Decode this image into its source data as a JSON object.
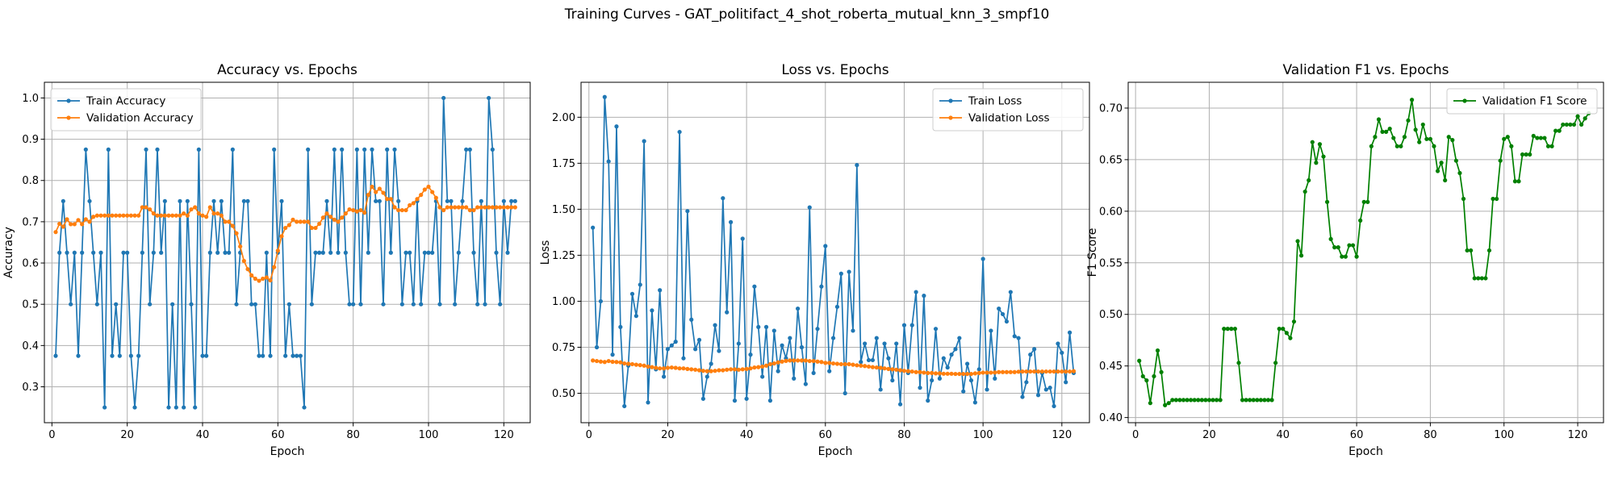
{
  "figure": {
    "suptitle": "Training Curves - GAT_politifact_4_shot_roberta_mutual_knn_3_smpf10"
  },
  "colors": {
    "train": "#1f77b4",
    "validation": "#ff7f0e",
    "f1": "#008000",
    "grid": "#b0b0b0"
  },
  "chart_data": [
    {
      "type": "line",
      "title": "Accuracy vs. Epochs",
      "xlabel": "Epoch",
      "ylabel": "Accuracy",
      "xlim": [
        -2,
        127
      ],
      "ylim": [
        0.213,
        1.038
      ],
      "xticks": [
        0,
        20,
        40,
        60,
        80,
        100,
        120
      ],
      "yticks": [
        0.3,
        0.4,
        0.5,
        0.6,
        0.7,
        0.8,
        0.9,
        1.0
      ],
      "ytick_labels": [
        "0.3",
        "0.4",
        "0.5",
        "0.6",
        "0.7",
        "0.8",
        "0.9",
        "1.0"
      ],
      "grid": true,
      "legend_position": "upper-left",
      "x": [
        1,
        2,
        3,
        4,
        5,
        6,
        7,
        8,
        9,
        10,
        11,
        12,
        13,
        14,
        15,
        16,
        17,
        18,
        19,
        20,
        21,
        22,
        23,
        24,
        25,
        26,
        27,
        28,
        29,
        30,
        31,
        32,
        33,
        34,
        35,
        36,
        37,
        38,
        39,
        40,
        41,
        42,
        43,
        44,
        45,
        46,
        47,
        48,
        49,
        50,
        51,
        52,
        53,
        54,
        55,
        56,
        57,
        58,
        59,
        60,
        61,
        62,
        63,
        64,
        65,
        66,
        67,
        68,
        69,
        70,
        71,
        72,
        73,
        74,
        75,
        76,
        77,
        78,
        79,
        80,
        81,
        82,
        83,
        84,
        85,
        86,
        87,
        88,
        89,
        90,
        91,
        92,
        93,
        94,
        95,
        96,
        97,
        98,
        99,
        100,
        101,
        102,
        103,
        104,
        105,
        106,
        107,
        108,
        109,
        110,
        111,
        112,
        113,
        114,
        115,
        116,
        117,
        118,
        119,
        120,
        121,
        122,
        123
      ],
      "series": [
        {
          "name": "Train Accuracy",
          "color": "#1f77b4",
          "values": [
            0.375,
            0.625,
            0.75,
            0.625,
            0.5,
            0.625,
            0.375,
            0.625,
            0.875,
            0.75,
            0.625,
            0.5,
            0.625,
            0.25,
            0.875,
            0.375,
            0.5,
            0.375,
            0.625,
            0.625,
            0.375,
            0.25,
            0.375,
            0.625,
            0.875,
            0.5,
            0.625,
            0.875,
            0.625,
            0.75,
            0.25,
            0.5,
            0.25,
            0.75,
            0.25,
            0.75,
            0.5,
            0.25,
            0.875,
            0.375,
            0.375,
            0.625,
            0.75,
            0.625,
            0.75,
            0.625,
            0.625,
            0.875,
            0.5,
            0.625,
            0.75,
            0.75,
            0.5,
            0.5,
            0.375,
            0.375,
            0.625,
            0.375,
            0.875,
            0.625,
            0.75,
            0.375,
            0.5,
            0.375,
            0.375,
            0.375,
            0.25,
            0.875,
            0.5,
            0.625,
            0.625,
            0.625,
            0.75,
            0.625,
            0.875,
            0.625,
            0.875,
            0.625,
            0.5,
            0.5,
            0.875,
            0.5,
            0.875,
            0.625,
            0.875,
            0.75,
            0.75,
            0.5,
            0.875,
            0.625,
            0.875,
            0.75,
            0.5,
            0.625,
            0.625,
            0.5,
            0.75,
            0.5,
            0.625,
            0.625,
            0.625,
            0.75,
            0.5,
            1.0,
            0.75,
            0.75,
            0.5,
            0.625,
            0.75,
            0.875,
            0.875,
            0.625,
            0.5,
            0.75,
            0.5,
            1.0,
            0.875,
            0.625,
            0.5,
            0.75,
            0.625,
            0.75,
            0.75
          ]
        },
        {
          "name": "Validation Accuracy",
          "color": "#ff7f0e",
          "values": [
            0.675,
            0.695,
            0.688,
            0.706,
            0.694,
            0.694,
            0.704,
            0.694,
            0.706,
            0.7,
            0.712,
            0.715,
            0.715,
            0.715,
            0.715,
            0.715,
            0.715,
            0.715,
            0.715,
            0.715,
            0.715,
            0.715,
            0.715,
            0.735,
            0.735,
            0.73,
            0.72,
            0.715,
            0.715,
            0.715,
            0.715,
            0.715,
            0.715,
            0.715,
            0.72,
            0.715,
            0.73,
            0.735,
            0.72,
            0.715,
            0.712,
            0.735,
            0.72,
            0.72,
            0.715,
            0.7,
            0.7,
            0.69,
            0.672,
            0.64,
            0.605,
            0.585,
            0.57,
            0.562,
            0.557,
            0.562,
            0.565,
            0.558,
            0.59,
            0.63,
            0.665,
            0.685,
            0.692,
            0.705,
            0.7,
            0.7,
            0.7,
            0.7,
            0.685,
            0.685,
            0.695,
            0.71,
            0.72,
            0.712,
            0.705,
            0.7,
            0.71,
            0.72,
            0.73,
            0.728,
            0.725,
            0.728,
            0.722,
            0.765,
            0.785,
            0.772,
            0.78,
            0.77,
            0.755,
            0.755,
            0.735,
            0.728,
            0.728,
            0.728,
            0.74,
            0.745,
            0.755,
            0.765,
            0.778,
            0.785,
            0.772,
            0.758,
            0.735,
            0.728,
            0.735,
            0.735,
            0.735,
            0.735,
            0.735,
            0.735,
            0.728,
            0.728,
            0.735,
            0.735,
            0.735,
            0.735,
            0.735,
            0.735,
            0.735,
            0.735,
            0.735,
            0.735,
            0.735
          ]
        }
      ]
    },
    {
      "type": "line",
      "title": "Loss vs. Epochs",
      "xlabel": "Epoch",
      "ylabel": "Loss",
      "xlim": [
        -2,
        127
      ],
      "ylim": [
        0.34,
        2.19
      ],
      "xticks": [
        0,
        20,
        40,
        60,
        80,
        100,
        120
      ],
      "yticks": [
        0.5,
        0.75,
        1.0,
        1.25,
        1.5,
        1.75,
        2.0
      ],
      "ytick_labels": [
        "0.50",
        "0.75",
        "1.00",
        "1.25",
        "1.50",
        "1.75",
        "2.00"
      ],
      "grid": true,
      "legend_position": "upper-right",
      "x": [
        1,
        2,
        3,
        4,
        5,
        6,
        7,
        8,
        9,
        10,
        11,
        12,
        13,
        14,
        15,
        16,
        17,
        18,
        19,
        20,
        21,
        22,
        23,
        24,
        25,
        26,
        27,
        28,
        29,
        30,
        31,
        32,
        33,
        34,
        35,
        36,
        37,
        38,
        39,
        40,
        41,
        42,
        43,
        44,
        45,
        46,
        47,
        48,
        49,
        50,
        51,
        52,
        53,
        54,
        55,
        56,
        57,
        58,
        59,
        60,
        61,
        62,
        63,
        64,
        65,
        66,
        67,
        68,
        69,
        70,
        71,
        72,
        73,
        74,
        75,
        76,
        77,
        78,
        79,
        80,
        81,
        82,
        83,
        84,
        85,
        86,
        87,
        88,
        89,
        90,
        91,
        92,
        93,
        94,
        95,
        96,
        97,
        98,
        99,
        100,
        101,
        102,
        103,
        104,
        105,
        106,
        107,
        108,
        109,
        110,
        111,
        112,
        113,
        114,
        115,
        116,
        117,
        118,
        119,
        120,
        121,
        122,
        123
      ],
      "series": [
        {
          "name": "Train Loss",
          "color": "#1f77b4",
          "values": [
            1.4,
            0.75,
            1.0,
            2.11,
            1.76,
            0.71,
            1.95,
            0.86,
            0.43,
            0.65,
            1.04,
            0.92,
            1.09,
            1.87,
            0.45,
            0.95,
            0.63,
            1.06,
            0.59,
            0.74,
            0.76,
            0.78,
            1.92,
            0.69,
            1.49,
            0.9,
            0.74,
            0.79,
            0.47,
            0.59,
            0.66,
            0.87,
            0.73,
            1.56,
            0.94,
            1.43,
            0.46,
            0.77,
            1.34,
            0.47,
            0.71,
            1.08,
            0.86,
            0.59,
            0.86,
            0.46,
            0.84,
            0.62,
            0.76,
            0.69,
            0.8,
            0.58,
            0.96,
            0.75,
            0.55,
            1.51,
            0.61,
            0.85,
            1.08,
            1.3,
            0.62,
            0.8,
            0.97,
            1.15,
            0.5,
            1.16,
            0.84,
            1.74,
            0.67,
            0.77,
            0.68,
            0.68,
            0.8,
            0.52,
            0.77,
            0.69,
            0.57,
            0.77,
            0.44,
            0.87,
            0.61,
            0.87,
            1.05,
            0.53,
            1.03,
            0.46,
            0.57,
            0.85,
            0.58,
            0.69,
            0.64,
            0.71,
            0.74,
            0.8,
            0.51,
            0.66,
            0.57,
            0.45,
            0.63,
            1.23,
            0.52,
            0.84,
            0.58,
            0.96,
            0.93,
            0.89,
            1.05,
            0.81,
            0.8,
            0.48,
            0.56,
            0.71,
            0.74,
            0.49,
            0.61,
            0.52,
            0.53,
            0.43,
            0.77,
            0.72,
            0.56,
            0.83,
            0.61
          ]
        },
        {
          "name": "Validation Loss",
          "color": "#ff7f0e",
          "values": [
            0.678,
            0.675,
            0.672,
            0.67,
            0.675,
            0.671,
            0.67,
            0.668,
            0.662,
            0.66,
            0.658,
            0.655,
            0.653,
            0.65,
            0.645,
            0.642,
            0.638,
            0.635,
            0.635,
            0.638,
            0.64,
            0.638,
            0.635,
            0.635,
            0.632,
            0.63,
            0.628,
            0.625,
            0.622,
            0.62,
            0.62,
            0.622,
            0.625,
            0.625,
            0.628,
            0.63,
            0.63,
            0.628,
            0.63,
            0.632,
            0.635,
            0.64,
            0.642,
            0.645,
            0.65,
            0.658,
            0.662,
            0.668,
            0.672,
            0.676,
            0.678,
            0.678,
            0.678,
            0.678,
            0.678,
            0.675,
            0.675,
            0.672,
            0.67,
            0.665,
            0.665,
            0.662,
            0.66,
            0.658,
            0.658,
            0.658,
            0.655,
            0.652,
            0.65,
            0.648,
            0.645,
            0.642,
            0.64,
            0.638,
            0.635,
            0.632,
            0.63,
            0.628,
            0.625,
            0.622,
            0.62,
            0.618,
            0.615,
            0.615,
            0.612,
            0.61,
            0.61,
            0.608,
            0.608,
            0.606,
            0.606,
            0.606,
            0.605,
            0.605,
            0.605,
            0.605,
            0.605,
            0.608,
            0.61,
            0.612,
            0.612,
            0.612,
            0.613,
            0.615,
            0.615,
            0.615,
            0.615,
            0.615,
            0.617,
            0.618,
            0.618,
            0.618,
            0.618,
            0.618,
            0.618,
            0.618,
            0.618,
            0.618,
            0.618,
            0.618,
            0.618,
            0.618,
            0.62
          ]
        }
      ]
    },
    {
      "type": "line",
      "title": "Validation F1 vs. Epochs",
      "xlabel": "Epoch",
      "ylabel": "F1 Score",
      "xlim": [
        -2,
        127
      ],
      "ylim": [
        0.395,
        0.725
      ],
      "xticks": [
        0,
        20,
        40,
        60,
        80,
        100,
        120
      ],
      "yticks": [
        0.4,
        0.45,
        0.5,
        0.55,
        0.6,
        0.65,
        0.7
      ],
      "ytick_labels": [
        "0.40",
        "0.45",
        "0.50",
        "0.55",
        "0.60",
        "0.65",
        "0.70"
      ],
      "grid": true,
      "legend_position": "upper-right",
      "x": [
        1,
        2,
        3,
        4,
        5,
        6,
        7,
        8,
        9,
        10,
        11,
        12,
        13,
        14,
        15,
        16,
        17,
        18,
        19,
        20,
        21,
        22,
        23,
        24,
        25,
        26,
        27,
        28,
        29,
        30,
        31,
        32,
        33,
        34,
        35,
        36,
        37,
        38,
        39,
        40,
        41,
        42,
        43,
        44,
        45,
        46,
        47,
        48,
        49,
        50,
        51,
        52,
        53,
        54,
        55,
        56,
        57,
        58,
        59,
        60,
        61,
        62,
        63,
        64,
        65,
        66,
        67,
        68,
        69,
        70,
        71,
        72,
        73,
        74,
        75,
        76,
        77,
        78,
        79,
        80,
        81,
        82,
        83,
        84,
        85,
        86,
        87,
        88,
        89,
        90,
        91,
        92,
        93,
        94,
        95,
        96,
        97,
        98,
        99,
        100,
        101,
        102,
        103,
        104,
        105,
        106,
        107,
        108,
        109,
        110,
        111,
        112,
        113,
        114,
        115,
        116,
        117,
        118,
        119,
        120,
        121,
        122,
        123
      ],
      "series": [
        {
          "name": "Validation F1 Score",
          "color": "#008000",
          "values": [
            0.455,
            0.44,
            0.436,
            0.414,
            0.44,
            0.465,
            0.444,
            0.412,
            0.414,
            0.417,
            0.417,
            0.417,
            0.417,
            0.417,
            0.417,
            0.417,
            0.417,
            0.417,
            0.417,
            0.417,
            0.417,
            0.417,
            0.417,
            0.486,
            0.486,
            0.486,
            0.486,
            0.453,
            0.417,
            0.417,
            0.417,
            0.417,
            0.417,
            0.417,
            0.417,
            0.417,
            0.417,
            0.453,
            0.486,
            0.486,
            0.482,
            0.477,
            0.493,
            0.571,
            0.557,
            0.619,
            0.63,
            0.667,
            0.647,
            0.665,
            0.653,
            0.609,
            0.573,
            0.565,
            0.565,
            0.556,
            0.556,
            0.567,
            0.567,
            0.556,
            0.591,
            0.609,
            0.609,
            0.663,
            0.672,
            0.689,
            0.677,
            0.677,
            0.68,
            0.671,
            0.663,
            0.663,
            0.672,
            0.688,
            0.708,
            0.679,
            0.667,
            0.684,
            0.67,
            0.67,
            0.663,
            0.639,
            0.647,
            0.63,
            0.672,
            0.669,
            0.649,
            0.637,
            0.612,
            0.562,
            0.562,
            0.535,
            0.535,
            0.535,
            0.535,
            0.562,
            0.612,
            0.612,
            0.649,
            0.67,
            0.672,
            0.663,
            0.629,
            0.629,
            0.655,
            0.655,
            0.655,
            0.673,
            0.671,
            0.671,
            0.671,
            0.663,
            0.663,
            0.678,
            0.678,
            0.684,
            0.684,
            0.684,
            0.684,
            0.692,
            0.684,
            0.69,
            0.695
          ]
        }
      ]
    }
  ]
}
